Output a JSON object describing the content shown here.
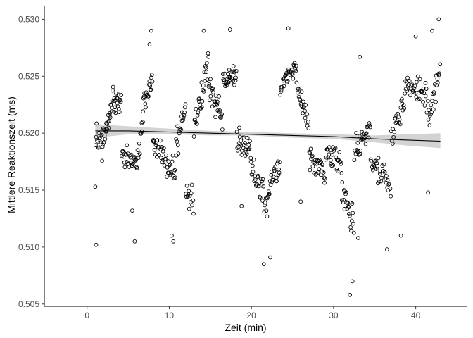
{
  "chart_data": {
    "type": "scatter",
    "xlabel": "Zeit (min)",
    "ylabel": "Mittlere Reaktionszeit (ms)",
    "xlim": [
      -5.2,
      46.2
    ],
    "ylim": [
      0.5048,
      0.5312
    ],
    "x_ticks": [
      0,
      10,
      20,
      30,
      40
    ],
    "y_ticks": [
      0.505,
      0.51,
      0.515,
      0.52,
      0.525,
      0.53
    ],
    "x_tick_labels": [
      "0",
      "10",
      "20",
      "30",
      "40"
    ],
    "y_tick_labels": [
      "0.505",
      "0.510",
      "0.515",
      "0.520",
      "0.525",
      "0.530"
    ],
    "grid": false,
    "legend": "none",
    "point_style": "hollow-circle",
    "colors": {
      "points": "#000000",
      "trend_line": "#000000",
      "confidence_band": "#d3d3d3",
      "axis": "#000000",
      "tick_labels": "#4d4d4d"
    },
    "trend": {
      "method": "smooth",
      "x": [
        1.0,
        5.0,
        10.0,
        15.0,
        20.0,
        25.0,
        30.0,
        35.0,
        39.0,
        43.0
      ],
      "y": [
        0.5202,
        0.5202,
        0.5201,
        0.52,
        0.5199,
        0.5198,
        0.5197,
        0.5195,
        0.5194,
        0.5193
      ],
      "lower": [
        0.5196,
        0.5199,
        0.5199,
        0.5198,
        0.5198,
        0.5196,
        0.5195,
        0.5192,
        0.5189,
        0.5187
      ],
      "upper": [
        0.5208,
        0.5206,
        0.5204,
        0.5202,
        0.5201,
        0.52,
        0.5199,
        0.5198,
        0.5199,
        0.52
      ]
    },
    "segments": [
      {
        "x": [
          1.0,
          1.8
        ],
        "center": [
          0.52,
          0.519
        ],
        "n": 12,
        "seed": 11
      },
      {
        "x": [
          1.8,
          3.2
        ],
        "center": [
          0.5185,
          0.5235
        ],
        "n": 28,
        "seed": 12
      },
      {
        "x": [
          3.2,
          4.2
        ],
        "center": [
          0.5228,
          0.5225
        ],
        "n": 18,
        "seed": 13
      },
      {
        "x": [
          4.2,
          6.0
        ],
        "center": [
          0.518,
          0.5172
        ],
        "n": 28,
        "seed": 14
      },
      {
        "x": [
          6.0,
          6.8
        ],
        "center": [
          0.517,
          0.5215
        ],
        "n": 12,
        "seed": 15
      },
      {
        "x": [
          6.8,
          8.0
        ],
        "center": [
          0.522,
          0.525
        ],
        "n": 20,
        "seed": 16
      },
      {
        "x": [
          8.0,
          9.2
        ],
        "center": [
          0.5195,
          0.518
        ],
        "n": 18,
        "seed": 17
      },
      {
        "x": [
          9.2,
          10.8
        ],
        "center": [
          0.5175,
          0.5165
        ],
        "n": 24,
        "seed": 18
      },
      {
        "x": [
          10.8,
          12.0
        ],
        "center": [
          0.5185,
          0.5225
        ],
        "n": 20,
        "seed": 19
      },
      {
        "x": [
          12.0,
          13.0
        ],
        "center": [
          0.515,
          0.514
        ],
        "n": 14,
        "seed": 20
      },
      {
        "x": [
          13.0,
          14.8
        ],
        "center": [
          0.52,
          0.5265
        ],
        "n": 30,
        "seed": 21
      },
      {
        "x": [
          14.8,
          16.5
        ],
        "center": [
          0.5245,
          0.521
        ],
        "n": 28,
        "seed": 22
      },
      {
        "x": [
          16.5,
          18.2
        ],
        "center": [
          0.5245,
          0.525
        ],
        "n": 30,
        "seed": 23
      },
      {
        "x": [
          18.2,
          20.0
        ],
        "center": [
          0.5195,
          0.5185
        ],
        "n": 28,
        "seed": 24
      },
      {
        "x": [
          20.0,
          22.0
        ],
        "center": [
          0.517,
          0.5135
        ],
        "n": 30,
        "seed": 25
      },
      {
        "x": [
          22.0,
          23.5
        ],
        "center": [
          0.515,
          0.5175
        ],
        "n": 24,
        "seed": 26
      },
      {
        "x": [
          23.5,
          25.5
        ],
        "center": [
          0.524,
          0.526
        ],
        "n": 32,
        "seed": 27
      },
      {
        "x": [
          25.5,
          27.0
        ],
        "center": [
          0.524,
          0.521
        ],
        "n": 22,
        "seed": 28
      },
      {
        "x": [
          27.0,
          29.0
        ],
        "center": [
          0.518,
          0.516
        ],
        "n": 30,
        "seed": 29
      },
      {
        "x": [
          29.0,
          31.0
        ],
        "center": [
          0.5185,
          0.517
        ],
        "n": 30,
        "seed": 30
      },
      {
        "x": [
          31.0,
          32.5
        ],
        "center": [
          0.515,
          0.512
        ],
        "n": 24,
        "seed": 31
      },
      {
        "x": [
          32.5,
          34.5
        ],
        "center": [
          0.5185,
          0.5205
        ],
        "n": 28,
        "seed": 32
      },
      {
        "x": [
          34.5,
          37.0
        ],
        "center": [
          0.5175,
          0.5155
        ],
        "n": 34,
        "seed": 33
      },
      {
        "x": [
          37.0,
          38.7
        ],
        "center": [
          0.52,
          0.523
        ],
        "n": 24,
        "seed": 34
      },
      {
        "x": [
          38.7,
          41.5
        ],
        "center": [
          0.5245,
          0.523
        ],
        "n": 38,
        "seed": 35
      },
      {
        "x": [
          41.5,
          43.0
        ],
        "center": [
          0.521,
          0.5255
        ],
        "n": 22,
        "seed": 36
      }
    ],
    "outliers": [
      {
        "x": 1.1,
        "y": 0.5102
      },
      {
        "x": 1.0,
        "y": 0.5153
      },
      {
        "x": 5.5,
        "y": 0.5132
      },
      {
        "x": 5.8,
        "y": 0.5105
      },
      {
        "x": 7.8,
        "y": 0.529
      },
      {
        "x": 7.6,
        "y": 0.5278
      },
      {
        "x": 10.3,
        "y": 0.511
      },
      {
        "x": 10.5,
        "y": 0.5105
      },
      {
        "x": 14.2,
        "y": 0.529
      },
      {
        "x": 17.4,
        "y": 0.5291
      },
      {
        "x": 18.8,
        "y": 0.5136
      },
      {
        "x": 21.5,
        "y": 0.5085
      },
      {
        "x": 22.3,
        "y": 0.5091
      },
      {
        "x": 24.5,
        "y": 0.5292
      },
      {
        "x": 26.0,
        "y": 0.514
      },
      {
        "x": 32.0,
        "y": 0.5058
      },
      {
        "x": 32.3,
        "y": 0.507
      },
      {
        "x": 33.2,
        "y": 0.5267
      },
      {
        "x": 33.0,
        "y": 0.5108
      },
      {
        "x": 36.5,
        "y": 0.5098
      },
      {
        "x": 38.2,
        "y": 0.511
      },
      {
        "x": 40.0,
        "y": 0.5285
      },
      {
        "x": 42.0,
        "y": 0.529
      },
      {
        "x": 42.8,
        "y": 0.53
      },
      {
        "x": 41.5,
        "y": 0.5148
      }
    ]
  }
}
